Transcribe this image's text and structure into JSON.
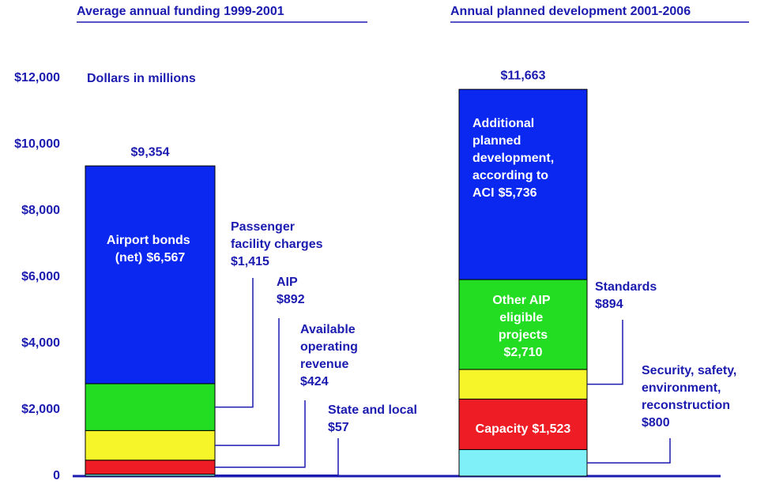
{
  "chart_data": {
    "type": "stacked_bar",
    "unit_note": "Dollars in millions",
    "ylim": [
      0,
      12000
    ],
    "yticks": [
      {
        "value": 0,
        "label": "0"
      },
      {
        "value": 2000,
        "label": "$2,000"
      },
      {
        "value": 4000,
        "label": "$4,000"
      },
      {
        "value": 6000,
        "label": "$6,000"
      },
      {
        "value": 8000,
        "label": "$8,000"
      },
      {
        "value": 10000,
        "label": "$10,000"
      },
      {
        "value": 12000,
        "label": "$12,000"
      }
    ],
    "panels": [
      {
        "title": "Average annual funding 1999-2001",
        "total": 9354,
        "total_label": "$9,354",
        "series": [
          {
            "name": "State and local",
            "color": "#7ff0f8",
            "values": [
              57
            ],
            "value_labels": [
              "$57"
            ]
          },
          {
            "name": "Available operating revenue",
            "color": "#ee1c24",
            "values": [
              424
            ],
            "value_labels": [
              "$424"
            ]
          },
          {
            "name": "AIP",
            "color": "#f5f52a",
            "values": [
              892
            ],
            "value_labels": [
              "$892"
            ]
          },
          {
            "name": "Passenger facility charges",
            "color": "#22dd22",
            "values": [
              1415
            ],
            "value_labels": [
              "$1,415"
            ]
          },
          {
            "name": "Airport bonds (net)",
            "color": "#0a28f0",
            "values": [
              6567
            ],
            "value_labels": [
              "$6,567"
            ]
          }
        ]
      },
      {
        "title": "Annual planned development 2001-2006",
        "total": 11663,
        "total_label": "$11,663",
        "series": [
          {
            "name": "Security, safety, environment, reconstruction",
            "color": "#7ff0f8",
            "values": [
              800
            ],
            "value_labels": [
              "$800"
            ]
          },
          {
            "name": "Capacity",
            "color": "#ee1c24",
            "values": [
              1523
            ],
            "value_labels": [
              "$1,523"
            ]
          },
          {
            "name": "Standards",
            "color": "#f5f52a",
            "values": [
              894
            ],
            "value_labels": [
              "$894"
            ]
          },
          {
            "name": "Other AIP eligible projects",
            "color": "#22dd22",
            "values": [
              2710
            ],
            "value_labels": [
              "$2,710"
            ]
          },
          {
            "name": "Additional planned development, according to ACI",
            "color": "#0a28f0",
            "values": [
              5736
            ],
            "value_labels": [
              "$5,736"
            ]
          }
        ]
      }
    ]
  }
}
